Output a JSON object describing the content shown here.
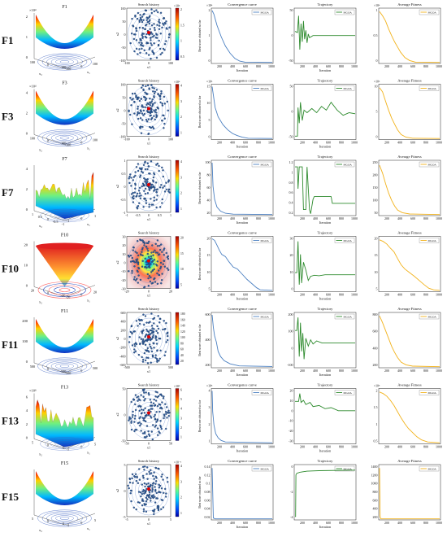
{
  "figure": {
    "rows": [
      {
        "label": "F1",
        "surface": {
          "title": "F1",
          "exp": "×10⁴",
          "kind": "bowl",
          "zticks": [
            "2",
            "1",
            "0"
          ],
          "xticks": [
            "100",
            "0",
            "-100"
          ],
          "yticks": [
            "-100",
            "0",
            "100"
          ],
          "xlab": "x₂",
          "ylab": "x₁"
        },
        "history": {
          "title": "Search history",
          "cbexp": "×10⁴",
          "cbticks": [
            "2",
            "1.5",
            "1",
            "0.5"
          ],
          "xticks": [
            "-100",
            "0",
            "100"
          ],
          "yticks": [
            "100",
            "50",
            "0",
            "-50",
            "-100"
          ],
          "xlab": "x1",
          "ylab": "x2"
        },
        "convergence": {
          "title": "Convergence curve",
          "exp": "×10⁴",
          "legend": "MGOA",
          "ylab": "Best score obtained so far",
          "xlab": "Iteration",
          "yticks": [
            "2",
            "1",
            "0"
          ],
          "xticks": [
            "200",
            "400",
            "600",
            "800",
            "1000"
          ],
          "profile": "conv1"
        },
        "trajectory": {
          "title": "Trajectory",
          "legend": "MGOA",
          "xlab": "Iteration",
          "yticks": [
            "50",
            "0",
            "-50"
          ],
          "xticks": [
            "200",
            "400",
            "600",
            "800",
            "1000"
          ],
          "profile": "traj1"
        },
        "fitness": {
          "title": "Average Fitness",
          "exp": "×10⁴",
          "legend": "MGOA",
          "yticks": [
            "1",
            "0.5",
            "0"
          ],
          "xticks": [
            "200",
            "400",
            "600",
            "800",
            "1000"
          ],
          "profile": "fit1"
        }
      },
      {
        "label": "F3",
        "surface": {
          "title": "F3",
          "exp": "×10⁴",
          "kind": "bowl",
          "zticks": [
            "4",
            "2",
            "0"
          ],
          "xticks": [
            "100",
            "0",
            "-100"
          ],
          "yticks": [
            "-100",
            "0",
            "100"
          ],
          "xlab": "x₂",
          "ylab": "x₁"
        },
        "history": {
          "title": "Search history",
          "cbexp": "×10⁴",
          "cbticks": [
            "4",
            "3",
            "2",
            "1"
          ],
          "xticks": [
            "-100",
            "0",
            "100"
          ],
          "yticks": [
            "100",
            "50",
            "0",
            "-50",
            "-100"
          ],
          "xlab": "x1",
          "ylab": "x2"
        },
        "convergence": {
          "title": "Convergence curve",
          "exp": "×10⁴",
          "legend": "MGOA",
          "ylab": "Best score obtained so far",
          "xlab": "Iteration",
          "yticks": [
            "15",
            "10",
            "5",
            "0"
          ],
          "xticks": [
            "200",
            "400",
            "600",
            "800",
            "1000"
          ],
          "profile": "conv3"
        },
        "trajectory": {
          "title": "Trajectory",
          "legend": "MGOA",
          "xlab": "Iteration",
          "yticks": [
            "50",
            "0",
            "-50"
          ],
          "xticks": [
            "200",
            "400",
            "600",
            "800",
            "1000"
          ],
          "profile": "traj3"
        },
        "fitness": {
          "title": "Average Fitness",
          "exp": "×10⁴",
          "legend": "MGOA",
          "yticks": [
            "10",
            "5",
            "0"
          ],
          "xticks": [
            "200",
            "400",
            "600",
            "800",
            "1000"
          ],
          "profile": "fit3"
        }
      },
      {
        "label": "F7",
        "surface": {
          "title": "F7",
          "exp": "",
          "kind": "spiky",
          "zticks": [
            "4",
            "2",
            "0"
          ],
          "xticks": [
            "1",
            "0.5",
            "0",
            "-0.5",
            "-1"
          ],
          "yticks": [
            "-1",
            "0",
            "1"
          ],
          "xlab": "x₂",
          "ylab": "x₁"
        },
        "history": {
          "title": "Search history",
          "cbexp": "",
          "cbticks": [
            "4",
            "3",
            "2",
            "1"
          ],
          "xticks": [
            "-1",
            "-0.5",
            "0",
            "0.5",
            "1"
          ],
          "yticks": [
            "1",
            "0.5",
            "0",
            "-0.5",
            "-1"
          ],
          "xlab": "x1",
          "ylab": "x2"
        },
        "convergence": {
          "title": "Convergence curve",
          "exp": "",
          "legend": "MGOA",
          "ylab": "Best score obtained so far",
          "xlab": "Iteration",
          "yticks": [
            "100",
            "80",
            "60",
            "40",
            "20"
          ],
          "xticks": [
            "200",
            "400",
            "600",
            "800",
            "1000"
          ],
          "profile": "conv7"
        },
        "trajectory": {
          "title": "Trajectory",
          "legend": "MGOA",
          "xlab": "Iteration",
          "yticks": [
            "1.2",
            "1",
            "0.8",
            "0.6",
            "0.4",
            "0.2"
          ],
          "xticks": [
            "200",
            "400",
            "600",
            "800",
            "1000"
          ],
          "profile": "traj7"
        },
        "fitness": {
          "title": "Average Fitness",
          "exp": "",
          "legend": "MGOA",
          "yticks": [
            "250",
            "200",
            "150",
            "100",
            "50"
          ],
          "xticks": [
            "200",
            "400",
            "600",
            "800",
            "1000"
          ],
          "profile": "fit7"
        }
      },
      {
        "label": "F10",
        "surface": {
          "title": "F10",
          "exp": "",
          "kind": "cone",
          "zticks": [
            "20",
            "10",
            "0"
          ],
          "xticks": [
            "20",
            "0",
            "-20"
          ],
          "yticks": [
            "-20",
            "0",
            "20"
          ],
          "xlab": "x₂",
          "ylab": "x₁"
        },
        "history": {
          "title": "Search history",
          "cbexp": "",
          "cbticks": [
            "20",
            "15",
            "10",
            "5"
          ],
          "xticks": [
            "-20",
            "0",
            "20"
          ],
          "yticks": [
            "30",
            "20",
            "10",
            "0",
            "-10",
            "-20",
            "-30"
          ],
          "xlab": "x1",
          "ylab": "x2"
        },
        "convergence": {
          "title": "Convergence curve",
          "exp": "",
          "legend": "MGOA",
          "ylab": "Best score obtained so far",
          "xlab": "Iteration",
          "yticks": [
            "20",
            "15",
            "10",
            "5"
          ],
          "xticks": [
            "200",
            "400",
            "600",
            "800",
            "1000"
          ],
          "profile": "conv10"
        },
        "trajectory": {
          "title": "Trajectory",
          "legend": "MGOA",
          "xlab": "Iteration",
          "yticks": [
            "30",
            "20",
            "10",
            "0"
          ],
          "xticks": [
            "200",
            "400",
            "600",
            "800",
            "1000"
          ],
          "profile": "traj10"
        },
        "fitness": {
          "title": "Average Fitness",
          "exp": "",
          "legend": "MGOA",
          "yticks": [
            "20",
            "15",
            "10",
            "5"
          ],
          "xticks": [
            "200",
            "400",
            "600",
            "800",
            "1000"
          ],
          "profile": "fit10"
        }
      },
      {
        "label": "F11",
        "surface": {
          "title": "F11",
          "exp": "",
          "kind": "bowl",
          "zticks": [
            "200",
            "100",
            "0"
          ],
          "xticks": [
            "500",
            "0",
            "-500"
          ],
          "yticks": [
            "-500",
            "0",
            "500"
          ],
          "xlab": "",
          "ylab": ""
        },
        "history": {
          "title": "Search history",
          "cbexp": "",
          "cbticks": [
            "180",
            "160",
            "140",
            "120",
            "100",
            "80",
            "60",
            "40",
            "20"
          ],
          "xticks": [
            "-500",
            "0",
            "500"
          ],
          "yticks": [
            "600",
            "400",
            "200",
            "0",
            "-200",
            "-400",
            "-600"
          ],
          "xlab": "x1",
          "ylab": "x2"
        },
        "convergence": {
          "title": "Convergence curve",
          "exp": "",
          "legend": "MGOA",
          "ylab": "Best score obtained so far",
          "xlab": "Iteration",
          "yticks": [
            "600",
            "400",
            "200"
          ],
          "xticks": [
            "200",
            "400",
            "600",
            "800",
            "1000"
          ],
          "profile": "conv11"
        },
        "trajectory": {
          "title": "Trajectory",
          "legend": "MGOA",
          "xlab": "Iteration",
          "yticks": [
            "200",
            "100",
            "0",
            "-100"
          ],
          "xticks": [
            "200",
            "400",
            "600",
            "800",
            "1000"
          ],
          "profile": "traj11"
        },
        "fitness": {
          "title": "Average Fitness",
          "exp": "",
          "legend": "MGOA",
          "yticks": [
            "800",
            "600",
            "400",
            "200"
          ],
          "xticks": [
            "200",
            "400",
            "600",
            "800",
            "1000"
          ],
          "profile": "fit11"
        }
      },
      {
        "label": "F13",
        "surface": {
          "title": "F13",
          "exp": "×10⁸",
          "kind": "spiky",
          "zticks": [
            "6",
            "4",
            "2",
            "0"
          ],
          "xticks": [
            "5",
            "0",
            "-5"
          ],
          "yticks": [
            "-5",
            "0",
            "5"
          ],
          "xlab": "x₂",
          "ylab": "x₁"
        },
        "history": {
          "title": "Search history",
          "cbexp": "×10⁸",
          "cbticks": [
            "6",
            "5",
            "4",
            "3",
            "2",
            "1"
          ],
          "xticks": [
            "-50",
            "0",
            "50"
          ],
          "yticks": [
            "50",
            "0",
            "-50"
          ],
          "xlab": "x1",
          "ylab": "x2"
        },
        "convergence": {
          "title": "Convergence curve",
          "exp": "×10⁸",
          "legend": "MGOA",
          "ylab": "Best score obtained so far",
          "xlab": "Iteration",
          "yticks": [
            "4",
            "3",
            "2",
            "1"
          ],
          "xticks": [
            "200",
            "400",
            "600",
            "800",
            "1000"
          ],
          "profile": "conv13"
        },
        "trajectory": {
          "title": "Trajectory",
          "legend": "MGOA",
          "xlab": "Iteration",
          "yticks": [
            "20",
            "10",
            "0",
            "-10",
            "-20",
            "-30"
          ],
          "xticks": [
            "200",
            "400",
            "600",
            "800",
            "1000"
          ],
          "profile": "traj13"
        },
        "fitness": {
          "title": "Average Fitness",
          "exp": "×10⁸",
          "legend": "MGOA",
          "yticks": [
            "2",
            "1.5",
            "1",
            "0.5"
          ],
          "xticks": [
            "200",
            "400",
            "600",
            "800",
            "1000"
          ],
          "profile": "fit13"
        }
      },
      {
        "label": "F15",
        "surface": {
          "title": "F15",
          "exp": "",
          "kind": "bowl",
          "zticks": [],
          "xticks": [
            "5",
            "0",
            "-5"
          ],
          "yticks": [
            "-5",
            "0",
            "5"
          ],
          "xlab": "x₂",
          "ylab": "x₁"
        },
        "history": {
          "title": "Search history",
          "cbexp": "×10⁻³",
          "cbticks": [
            "4",
            "3",
            "2",
            "1"
          ],
          "xticks": [
            "-5",
            "0",
            "5"
          ],
          "yticks": [
            "5",
            "0",
            "-5"
          ],
          "xlab": "x1",
          "ylab": "x2"
        },
        "convergence": {
          "title": "Convergence curve",
          "exp": "",
          "legend": "MGOA",
          "ylab": "Best score obtained so far",
          "xlab": "Iteration",
          "yticks": [
            "0.14",
            "0.12",
            "0.1",
            "0.08",
            "0.06",
            "0.04",
            "0.02"
          ],
          "xticks": [
            "200",
            "400",
            "600",
            "800",
            "1000"
          ],
          "profile": "conv15"
        },
        "trajectory": {
          "title": "Trajectory",
          "legend": "MGOA",
          "xlab": "Iteration",
          "yticks": [
            "0",
            "-2",
            "-4"
          ],
          "xticks": [
            "200",
            "400",
            "600",
            "800",
            "1000"
          ],
          "profile": "traj15"
        },
        "fitness": {
          "title": "Average Fitness",
          "exp": "",
          "legend": "MGOA",
          "yticks": [
            "1400",
            "1200",
            "1000",
            "800",
            "600",
            "400",
            "200"
          ],
          "xticks": [
            "200",
            "400",
            "600",
            "800",
            "1000"
          ],
          "profile": "fit15"
        }
      }
    ]
  },
  "colors": {
    "convergence": "#4a7fc1",
    "trajectory": "#2e8b2e",
    "fitness": "#f2b21a",
    "best": "#e00000"
  }
}
